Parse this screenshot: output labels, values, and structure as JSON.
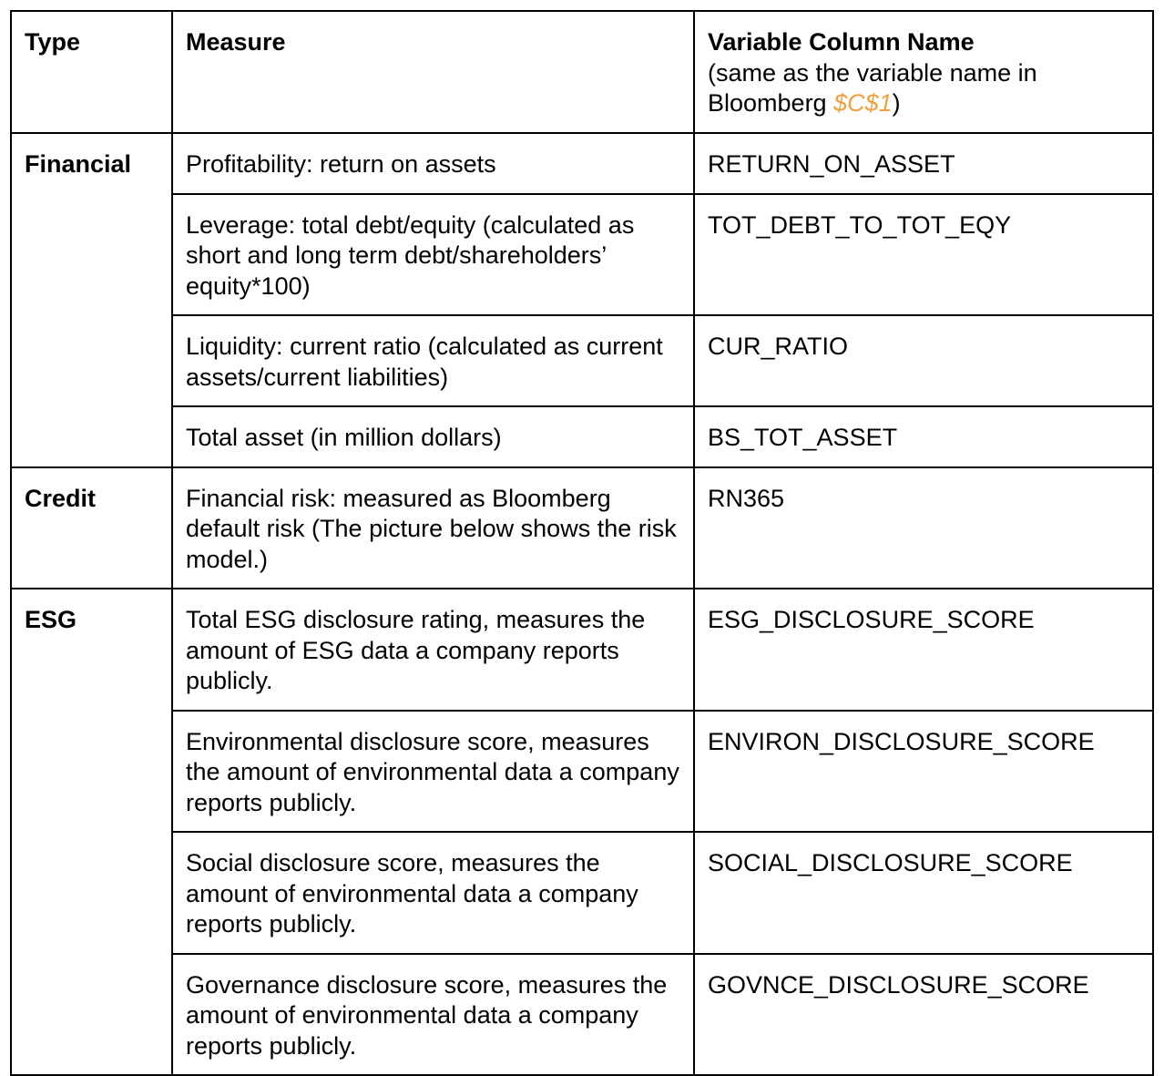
{
  "header": {
    "type": "Type",
    "measure": "Measure",
    "variable_title": "Variable Column Name",
    "variable_note_prefix": "(same as the variable name in Bloomberg ",
    "variable_note_ref": "$C$1",
    "variable_note_suffix": ")"
  },
  "groups": {
    "financial": "Financial",
    "credit": "Credit",
    "esg": "ESG"
  },
  "rows": [
    {
      "measure": "Profitability: return on assets",
      "variable": "RETURN_ON_ASSET"
    },
    {
      "measure": "Leverage: total debt/equity (calculated as short and long term debt/shareholders’ equity*100)",
      "variable": "TOT_DEBT_TO_TOT_EQY"
    },
    {
      "measure": "Liquidity: current ratio (calculated as current assets/current liabilities)",
      "variable": "CUR_RATIO"
    },
    {
      "measure": "Total asset (in million dollars)",
      "variable": "BS_TOT_ASSET"
    },
    {
      "measure": "Financial risk: measured as Bloomberg default risk (The picture below shows the risk model.)",
      "variable": "RN365"
    },
    {
      "measure": "Total ESG disclosure rating, measures the amount of ESG data a company reports publicly.",
      "variable": "ESG_DISCLOSURE_SCORE"
    },
    {
      "measure": "Environmental disclosure score, measures the amount of environmental data a company reports publicly.",
      "variable": "ENVIRON_DISCLOSURE_SCORE"
    },
    {
      "measure": "Social disclosure score, measures the amount of environmental data a company reports publicly.",
      "variable": "SOCIAL_DISCLOSURE_SCORE"
    },
    {
      "measure": "Governance disclosure score, measures the amount of environmental data a company reports publicly.",
      "variable": "GOVNCE_DISCLOSURE_SCORE"
    }
  ],
  "colors": {
    "accent": "#f0a040",
    "border": "#000000",
    "text": "#000000"
  }
}
